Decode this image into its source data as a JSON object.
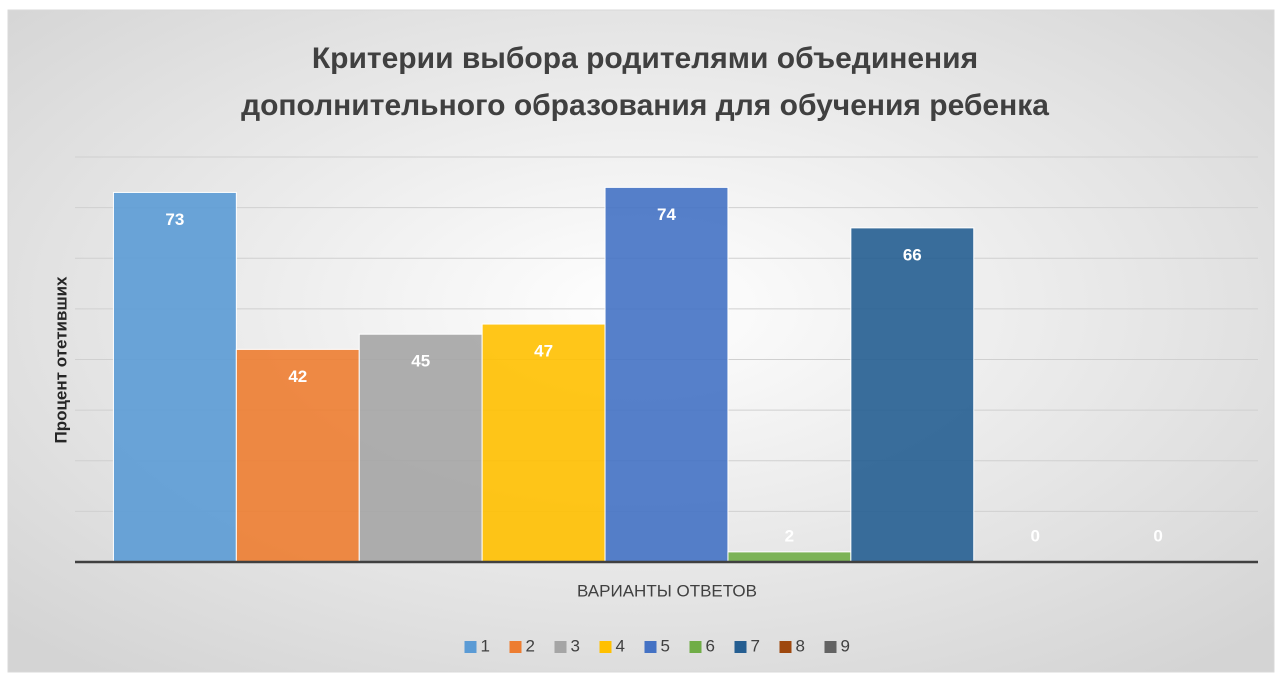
{
  "chart_data": {
    "type": "bar",
    "title": [
      "Критерии выбора родителями объединения",
      "дополнительного образования для обучения  ребенка"
    ],
    "x_label": "ВАРИАНТЫ ОТВЕТОВ",
    "y_label": "Процент отетивших",
    "categories": [
      null
    ],
    "series": [
      {
        "name": "1",
        "color": "#5b9bd5",
        "values": [
          73
        ]
      },
      {
        "name": "2",
        "color": "#ed7d31",
        "values": [
          42
        ]
      },
      {
        "name": "3",
        "color": "#a5a5a5",
        "values": [
          45
        ]
      },
      {
        "name": "4",
        "color": "#ffc000",
        "values": [
          47
        ]
      },
      {
        "name": "5",
        "color": "#4472c4",
        "values": [
          74
        ]
      },
      {
        "name": "6",
        "color": "#70ad47",
        "values": [
          2
        ]
      },
      {
        "name": "7",
        "color": "#255e91",
        "values": [
          66
        ]
      },
      {
        "name": "8",
        "color": "#9e480e",
        "values": [
          0
        ]
      },
      {
        "name": "9",
        "color": "#636363",
        "values": [
          0
        ]
      }
    ],
    "ylim": [
      0,
      80
    ],
    "yticks": [
      0,
      10,
      20,
      30,
      40,
      50,
      60,
      70,
      80
    ],
    "grid": true,
    "legend": "bottom"
  }
}
